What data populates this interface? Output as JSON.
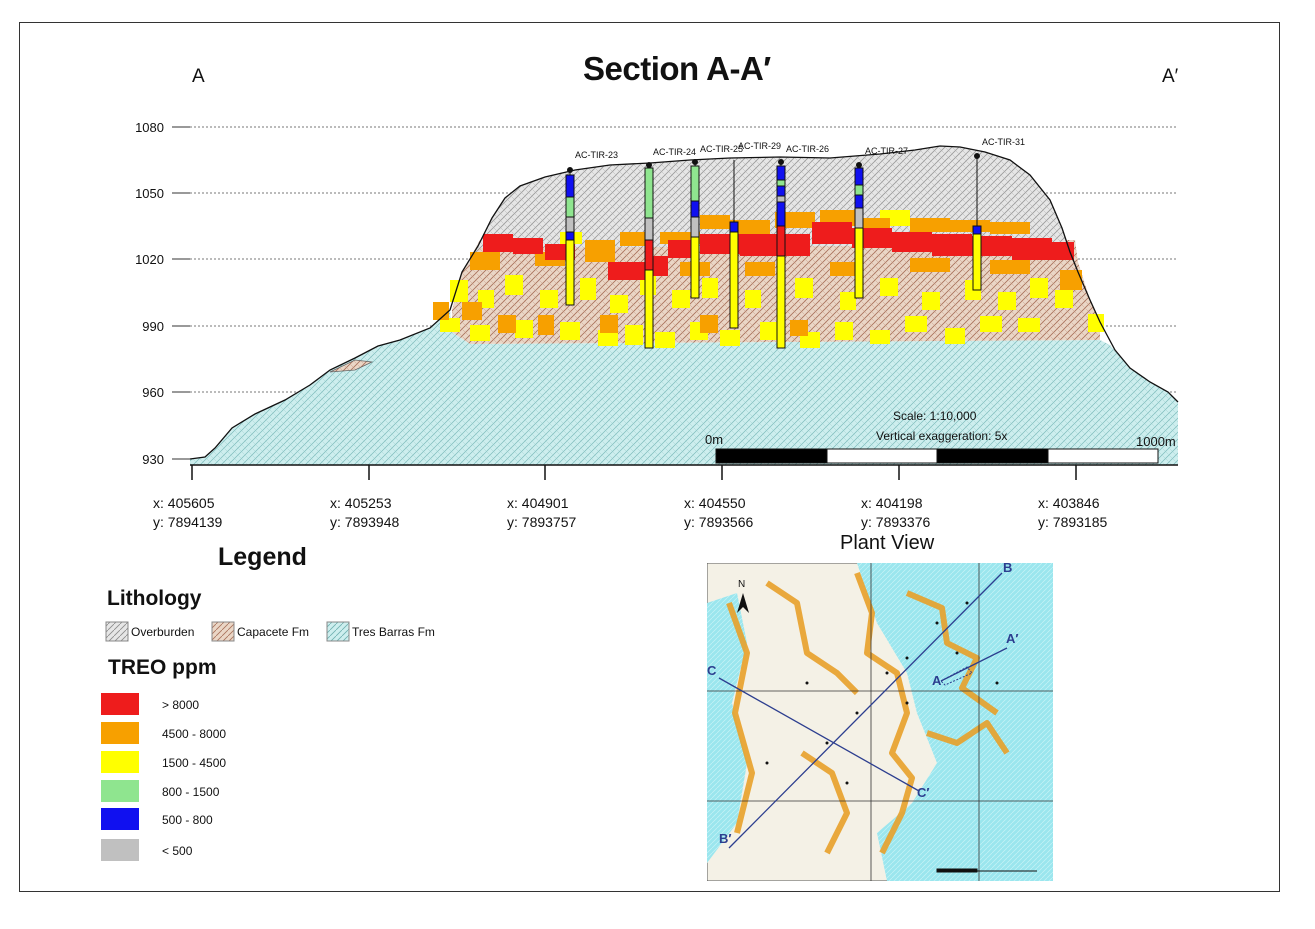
{
  "section": {
    "title": "Section A-A′",
    "end_left": "A",
    "end_right": "A′",
    "y_ticks": [
      "1080",
      "1050",
      "1020",
      "990",
      "960",
      "930"
    ],
    "y_values": [
      1080,
      1050,
      1020,
      990,
      960,
      930
    ],
    "drillholes": [
      "AC-TIR-23",
      "AC-TIR-24",
      "AC-TIR-25",
      "AC-TIR-29",
      "AC-TIR-26",
      "AC-TIR-27",
      "AC-TIR-31"
    ],
    "scale_text": "Scale: 1:10,000",
    "exaggeration_text": "Vertical exaggeration: 5x",
    "scalebar_start": "0m",
    "scalebar_end": "1000m"
  },
  "coordinates": [
    {
      "x": "x:  405605",
      "y": "y:  7894139"
    },
    {
      "x": "x:  405253",
      "y": "y:  7893948"
    },
    {
      "x": "x:  404901",
      "y": "y:  7893757"
    },
    {
      "x": "x:  404550",
      "y": "y:  7893566"
    },
    {
      "x": "x:  404198",
      "y": "y:  7893376"
    },
    {
      "x": "x:  403846",
      "y": "y:  7893185"
    }
  ],
  "legend": {
    "title": "Legend",
    "lithology_title": "Lithology",
    "lithology": [
      "Overburden",
      "Capacete Fm",
      "Tres Barras Fm"
    ],
    "treo_title": "TREO ppm",
    "treo": [
      {
        "label": "> 8000",
        "color": "#ee1c1c"
      },
      {
        "label": "4500 - 8000",
        "color": "#f7a000"
      },
      {
        "label": "1500 - 4500",
        "color": "#ffff00"
      },
      {
        "label": "800 - 1500",
        "color": "#8fe58f"
      },
      {
        "label": "500 - 800",
        "color": "#1010f0"
      },
      {
        "label": "< 500",
        "color": "#c0c0c0"
      }
    ]
  },
  "plant_view": {
    "title": "Plant View",
    "north": "N",
    "labels": [
      "B",
      "A′",
      "A",
      "C",
      "C′",
      "B′"
    ]
  }
}
